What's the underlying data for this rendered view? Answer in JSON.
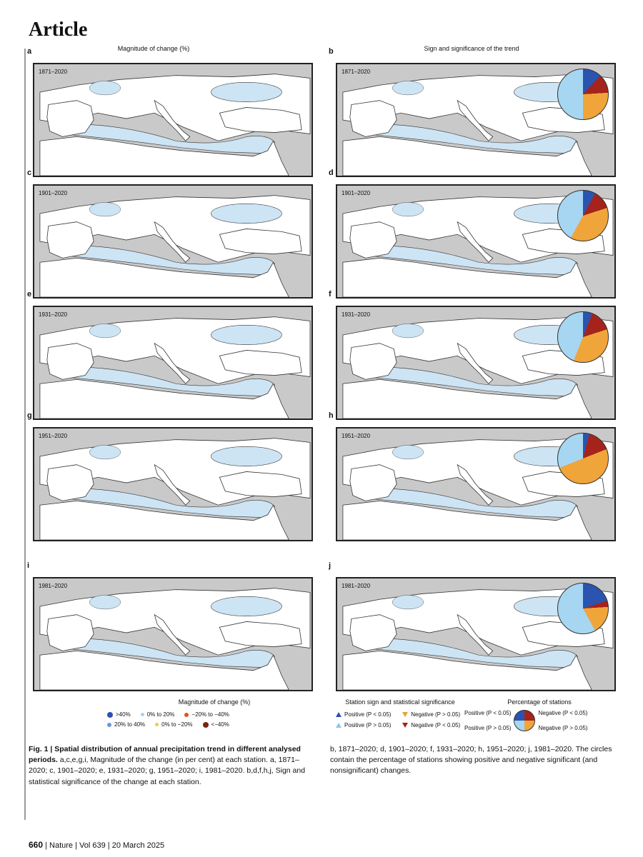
{
  "header": {
    "journal_section": "Article"
  },
  "columns": {
    "left_title": "Magnitude of change (%)",
    "right_title": "Sign and significance of the trend"
  },
  "panels": [
    {
      "letter": "a",
      "period": "1871–2020",
      "type": "magnitude"
    },
    {
      "letter": "b",
      "period": "1871–2020",
      "type": "sign",
      "pie": {
        "pos_sig": 12,
        "neg_sig": 12,
        "neg_ns": 26,
        "pos_ns": 50
      }
    },
    {
      "letter": "c",
      "period": "1901–2020",
      "type": "magnitude"
    },
    {
      "letter": "d",
      "period": "1901–2020",
      "type": "sign",
      "pie": {
        "pos_sig": 8,
        "neg_sig": 12,
        "neg_ns": 38,
        "pos_ns": 42
      }
    },
    {
      "letter": "e",
      "period": "1931–2020",
      "type": "magnitude"
    },
    {
      "letter": "f",
      "period": "1931–2020",
      "type": "sign",
      "pie": {
        "pos_sig": 6,
        "neg_sig": 14,
        "neg_ns": 36,
        "pos_ns": 44
      }
    },
    {
      "letter": "g",
      "period": "1951–2020",
      "type": "magnitude"
    },
    {
      "letter": "h",
      "period": "1951–2020",
      "type": "sign",
      "pie": {
        "pos_sig": 4,
        "neg_sig": 15,
        "neg_ns": 50,
        "pos_ns": 31
      }
    },
    {
      "letter": "i",
      "period": "1981–2020",
      "type": "magnitude"
    },
    {
      "letter": "j",
      "period": "1981–2020",
      "type": "sign",
      "pie": {
        "pos_sig": 20,
        "neg_sig": 4,
        "neg_ns": 18,
        "pos_ns": 58
      }
    }
  ],
  "legend_magnitude": {
    "title": "Magnitude of change (%)",
    "items": [
      {
        "label": ">40%",
        "color": "#2f4fb5",
        "size": 8
      },
      {
        "label": "0% to 20%",
        "color": "#a9d0ee",
        "size": 5
      },
      {
        "label": "−20% to −40%",
        "color": "#e0531f",
        "size": 6
      },
      {
        "label": "20% to 40%",
        "color": "#6f94d6",
        "size": 6
      },
      {
        "label": "0% to −20%",
        "color": "#f2cd3b",
        "size": 5
      },
      {
        "label": "<−40%",
        "color": "#7a2410",
        "size": 8
      }
    ]
  },
  "legend_sign": {
    "title": "Station sign and statistical significance",
    "items": [
      {
        "label": "Positive (P < 0.05)",
        "shape": "up",
        "color": "#2f4fb5"
      },
      {
        "label": "Negative (P > 0.05)",
        "shape": "down",
        "color": "#e6a13a"
      },
      {
        "label": "Positive (P > 0.05)",
        "shape": "up",
        "color": "#8ec4ea"
      },
      {
        "label": "Negative (P < 0.05)",
        "shape": "down",
        "color": "#a5211a"
      }
    ]
  },
  "legend_pct": {
    "title": "Percentage of stations",
    "pos_sig": "Positive (P < 0.05)",
    "neg_sig": "Negative (P < 0.05)",
    "pos_ns": "Positive (P > 0.05)",
    "neg_ns": "Negative (P > 0.05)"
  },
  "colors": {
    "pos_sig": "#2a54b0",
    "neg_sig": "#a5231a",
    "neg_ns": "#f0a53a",
    "pos_ns": "#a6d6f2",
    "sea": "#cde4f4",
    "land_inside": "#ffffff",
    "land_outside": "#c9c9c9"
  },
  "caption": {
    "fig_label": "Fig. 1 | Spatial distribution of annual precipitation trend in different analysed periods.",
    "left_text": " a,c,e,g,i, Magnitude of the change (in per cent) at each station. a, 1871–2020; c, 1901–2020; e, 1931–2020; g, 1951–2020; i, 1981–2020. b,d,f,h,j, Sign and statistical significance of the change at each station.",
    "right_text": "b, 1871–2020; d, 1901–2020; f, 1931–2020; h, 1951–2020; j, 1981–2020. The circles contain the percentage of stations showing positive and negative significant (and nonsignificant) changes."
  },
  "footer": {
    "page": "660",
    "journal": "Nature",
    "volume": "Vol 639",
    "date": "20 March 2025"
  }
}
